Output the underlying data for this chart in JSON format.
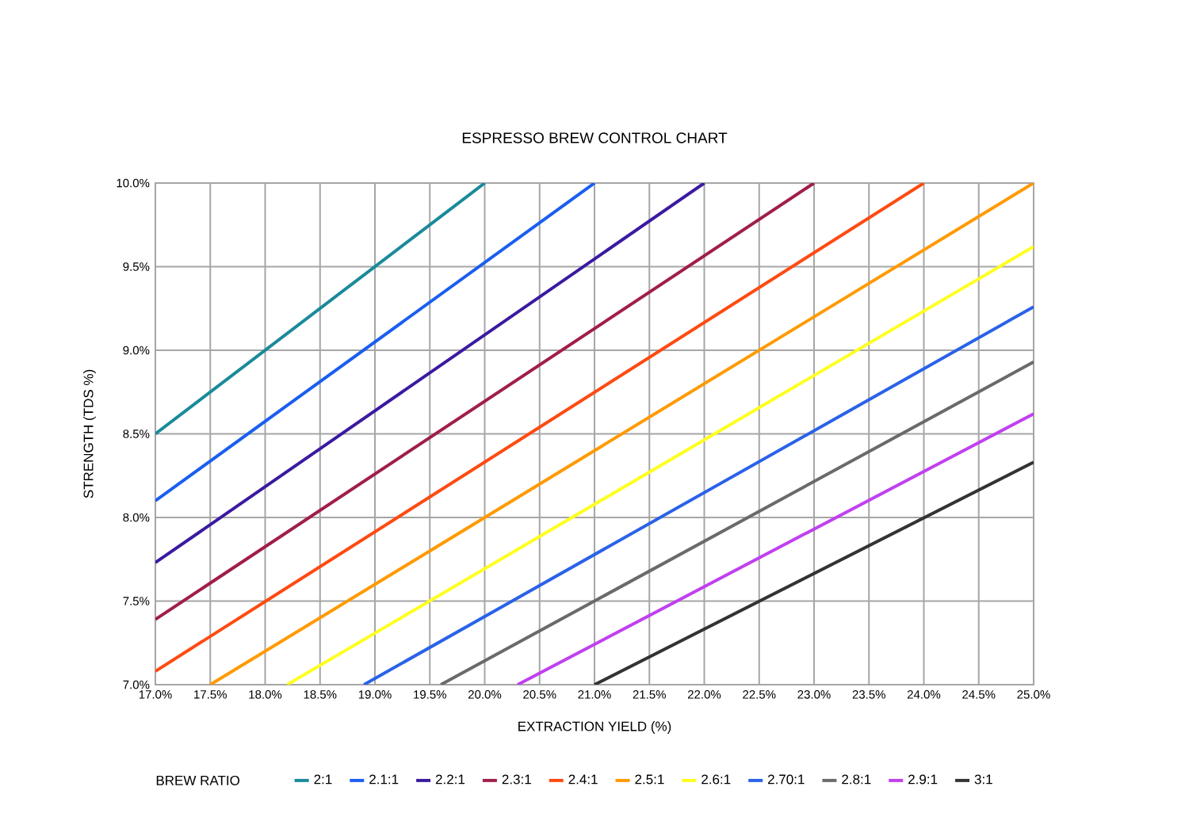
{
  "chart_data": {
    "type": "line",
    "title": "ESPRESSO BREW CONTROL CHART",
    "xlabel": "EXTRACTION YIELD (%)",
    "ylabel": "STRENGTH (TDS %)",
    "legend_title": "BREW RATIO",
    "xlim": [
      17,
      25
    ],
    "ylim": [
      7,
      10
    ],
    "xticks": [
      {
        "value": 17.0,
        "label": "17.0%"
      },
      {
        "value": 17.5,
        "label": "17.5%"
      },
      {
        "value": 18.0,
        "label": "18.0%"
      },
      {
        "value": 18.5,
        "label": "18.5%"
      },
      {
        "value": 19.0,
        "label": "19.0%"
      },
      {
        "value": 19.5,
        "label": "19.5%"
      },
      {
        "value": 20.0,
        "label": "20.0%"
      },
      {
        "value": 20.5,
        "label": "20.5%"
      },
      {
        "value": 21.0,
        "label": "21.0%"
      },
      {
        "value": 21.5,
        "label": "21.5%"
      },
      {
        "value": 22.0,
        "label": "22.0%"
      },
      {
        "value": 22.5,
        "label": "22.5%"
      },
      {
        "value": 23.0,
        "label": "23.0%"
      },
      {
        "value": 23.5,
        "label": "23.5%"
      },
      {
        "value": 24.0,
        "label": "24.0%"
      },
      {
        "value": 24.5,
        "label": "24.5%"
      },
      {
        "value": 25.0,
        "label": "25.0%"
      }
    ],
    "yticks": [
      {
        "value": 7.0,
        "label": "7.0%"
      },
      {
        "value": 7.5,
        "label": "7.5%"
      },
      {
        "value": 8.0,
        "label": "8.0%"
      },
      {
        "value": 8.5,
        "label": "8.5%"
      },
      {
        "value": 9.0,
        "label": "9.0%"
      },
      {
        "value": 9.5,
        "label": "9.5%"
      },
      {
        "value": 10.0,
        "label": "10.0%"
      }
    ],
    "grid": true,
    "legend": "bottom",
    "marker": "none",
    "line_style": "solid",
    "series": [
      {
        "name": "2:1",
        "color": "#1a8a9a",
        "x": [
          17.0,
          20.0
        ],
        "values": [
          8.5,
          10.0
        ]
      },
      {
        "name": "2.1:1",
        "color": "#1a5ef0",
        "x": [
          17.0,
          21.0
        ],
        "values": [
          8.1,
          10.0
        ]
      },
      {
        "name": "2.2:1",
        "color": "#3a1aa0",
        "x": [
          17.0,
          22.0
        ],
        "values": [
          7.73,
          10.0
        ]
      },
      {
        "name": "2.3:1",
        "color": "#a01e4a",
        "x": [
          17.0,
          23.0
        ],
        "values": [
          7.39,
          10.0
        ]
      },
      {
        "name": "2.4:1",
        "color": "#ff4a10",
        "x": [
          17.0,
          24.0
        ],
        "values": [
          7.08,
          10.0
        ]
      },
      {
        "name": "2.5:1",
        "color": "#ff9a00",
        "x": [
          17.5,
          25.0
        ],
        "values": [
          7.0,
          10.0
        ]
      },
      {
        "name": "2.6:1",
        "color": "#ffff20",
        "x": [
          18.2,
          25.0
        ],
        "values": [
          7.0,
          9.62
        ]
      },
      {
        "name": "2.70:1",
        "color": "#2a62e8",
        "x": [
          18.9,
          25.0
        ],
        "values": [
          7.0,
          9.26
        ]
      },
      {
        "name": "2.8:1",
        "color": "#6a6a6a",
        "x": [
          19.6,
          25.0
        ],
        "values": [
          7.0,
          8.93
        ]
      },
      {
        "name": "2.9:1",
        "color": "#c040f0",
        "x": [
          20.3,
          25.0
        ],
        "values": [
          7.0,
          8.62
        ]
      },
      {
        "name": "3:1",
        "color": "#333333",
        "x": [
          21.0,
          25.0
        ],
        "values": [
          7.0,
          8.33
        ]
      }
    ]
  }
}
